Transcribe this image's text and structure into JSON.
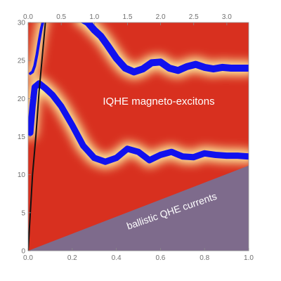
{
  "chart_data": {
    "type": "heatmap",
    "x_bottom": {
      "ticks": [
        "0.0",
        "0.2",
        "0.4",
        "0.6",
        "0.8",
        "1.0"
      ],
      "range": [
        0,
        1
      ]
    },
    "x_top": {
      "ticks": [
        "0.0",
        "0.5",
        "1.0",
        "1.5",
        "2.0",
        "2.5",
        "3.0"
      ],
      "range": [
        0,
        3.33
      ]
    },
    "y_left": {
      "ticks": [
        "0",
        "5",
        "10",
        "15",
        "20",
        "25",
        "30"
      ],
      "range": [
        0,
        30
      ]
    },
    "annotations": [
      "IQHE magneto-excitons",
      "ballistic QHE currents"
    ],
    "colors": {
      "background": "#d8301f",
      "bright": "#fff6a6",
      "band": "#1111ee",
      "wedge": "#7e6b8c",
      "line": "#111111"
    },
    "series": [
      {
        "x": [
          0.0,
          0.02,
          0.035,
          0.05,
          0.08,
          0.12,
          0.16,
          0.2,
          0.25,
          0.3,
          0.35
        ],
        "y": [
          0.0,
          10.0,
          15.0,
          21.0,
          30.5,
          41.5,
          52.0,
          62.0,
          75.0,
          88.0,
          101.0
        ]
      },
      {
        "x": [
          0.01,
          0.02,
          0.03,
          0.04,
          0.05,
          0.06,
          0.07
        ],
        "y": [
          23.3,
          23.5,
          24.3,
          25.8,
          27.6,
          29.2,
          30.4
        ]
      },
      {
        "x": [
          0.01,
          0.02,
          0.03,
          0.05,
          0.08,
          0.11,
          0.15,
          0.2,
          0.25,
          0.3,
          0.35,
          0.4,
          0.45,
          0.5,
          0.55,
          0.6,
          0.65,
          0.7,
          0.75,
          0.8,
          0.85,
          0.9,
          0.95,
          1.0
        ],
        "y": [
          15.5,
          19.0,
          21.5,
          22.0,
          21.3,
          20.5,
          19.0,
          16.5,
          13.8,
          12.2,
          11.7,
          12.2,
          13.4,
          13.0,
          11.9,
          12.6,
          13.0,
          12.4,
          12.3,
          12.8,
          12.6,
          12.5,
          12.5,
          12.4
        ]
      },
      {
        "x": [
          0.24,
          0.27,
          0.3,
          0.33,
          0.36,
          0.4,
          0.44,
          0.48,
          0.52,
          0.56,
          0.6,
          0.64,
          0.68,
          0.72,
          0.76,
          0.8,
          0.84,
          0.88,
          0.92,
          0.96,
          1.0
        ],
        "y": [
          30.5,
          30.0,
          29.0,
          28.2,
          27.0,
          25.3,
          24.0,
          23.5,
          23.9,
          24.7,
          24.8,
          24.0,
          23.7,
          24.2,
          24.5,
          24.1,
          23.9,
          24.1,
          24.0,
          24.0,
          24.0
        ]
      },
      {
        "x": [
          0.0,
          1.0
        ],
        "y": [
          0.0,
          11.2
        ]
      }
    ]
  }
}
